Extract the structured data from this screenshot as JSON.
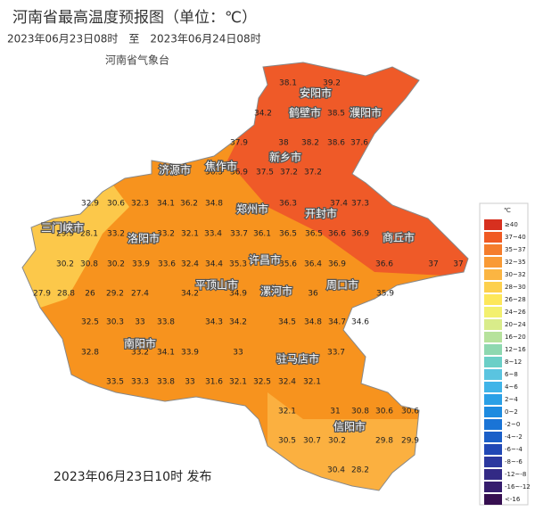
{
  "header": {
    "title": "河南省最高温度预报图（单位：℃）",
    "period": "2023年06月23日08时　至　2023年06月24日08时",
    "issuer": "河南省气象台"
  },
  "footer": {
    "published": "2023年06月23日10时 发布"
  },
  "cities": [
    "安阳市",
    "鹤壁市",
    "濮阳市",
    "新乡市",
    "焦作市",
    "济源市",
    "郑州市",
    "开封市",
    "三门峡市",
    "洛阳市",
    "商丘市",
    "许昌市",
    "平顶山市",
    "漯河市",
    "周口市",
    "南阳市",
    "驻马店市",
    "信阳市"
  ],
  "temperatures": [
    38.1,
    39.2,
    34.2,
    38.5,
    37.9,
    38,
    38.2,
    38.6,
    37.6,
    36.3,
    36.9,
    37.5,
    37.2,
    37.2,
    32.9,
    30.6,
    32.3,
    34.1,
    36.2,
    34.8,
    36.3,
    37.4,
    37.3,
    29.9,
    28.1,
    33.2,
    33.2,
    32.1,
    33.4,
    33.7,
    36.1,
    36.5,
    36.5,
    36.6,
    36.9,
    30.2,
    30.8,
    30.2,
    33.9,
    33.6,
    32.4,
    34.4,
    35.3,
    35.6,
    36.4,
    36.9,
    36.6,
    37,
    37,
    27.9,
    28.8,
    26,
    29.2,
    27.4,
    34.2,
    34.9,
    36,
    35.9,
    32.5,
    30.3,
    33,
    33.8,
    34.3,
    34.2,
    34.5,
    34.8,
    34.7,
    34.6,
    32.8,
    33.2,
    34.1,
    33.9,
    33,
    33.7,
    33.5,
    33.3,
    33.8,
    33,
    31.6,
    32.1,
    32.5,
    32.4,
    32.1,
    32.1,
    31,
    30.8,
    30.6,
    30.6,
    30.5,
    30.7,
    30.2,
    29.8,
    29.9,
    30.4,
    28.2
  ],
  "legend": {
    "unit": "℃",
    "labels": [
      "≥40",
      "37~40",
      "35~37",
      "32~35",
      "30~32",
      "28~30",
      "26~28",
      "24~26",
      "20~24",
      "16~20",
      "12~16",
      "8~12",
      "6~8",
      "4~6",
      "2~4",
      "0~2",
      "-2~0",
      "-4~-2",
      "-6~-4",
      "-8~-6",
      "-12~-8",
      "-16~-12",
      "<-16"
    ],
    "colors": [
      "#d7301f",
      "#f05a23",
      "#f57d2c",
      "#f99a35",
      "#fbb542",
      "#fdd04d",
      "#fde75a",
      "#f3f06e",
      "#d9ec8a",
      "#b6e29c",
      "#8ed8b0",
      "#6bcfc7",
      "#5ac4e0",
      "#40b4e8",
      "#2aa0e6",
      "#1d8be0",
      "#1a74d6",
      "#1b5fc8",
      "#2148b5",
      "#2b389f",
      "#332a85",
      "#361d6d",
      "#360f50"
    ]
  }
}
